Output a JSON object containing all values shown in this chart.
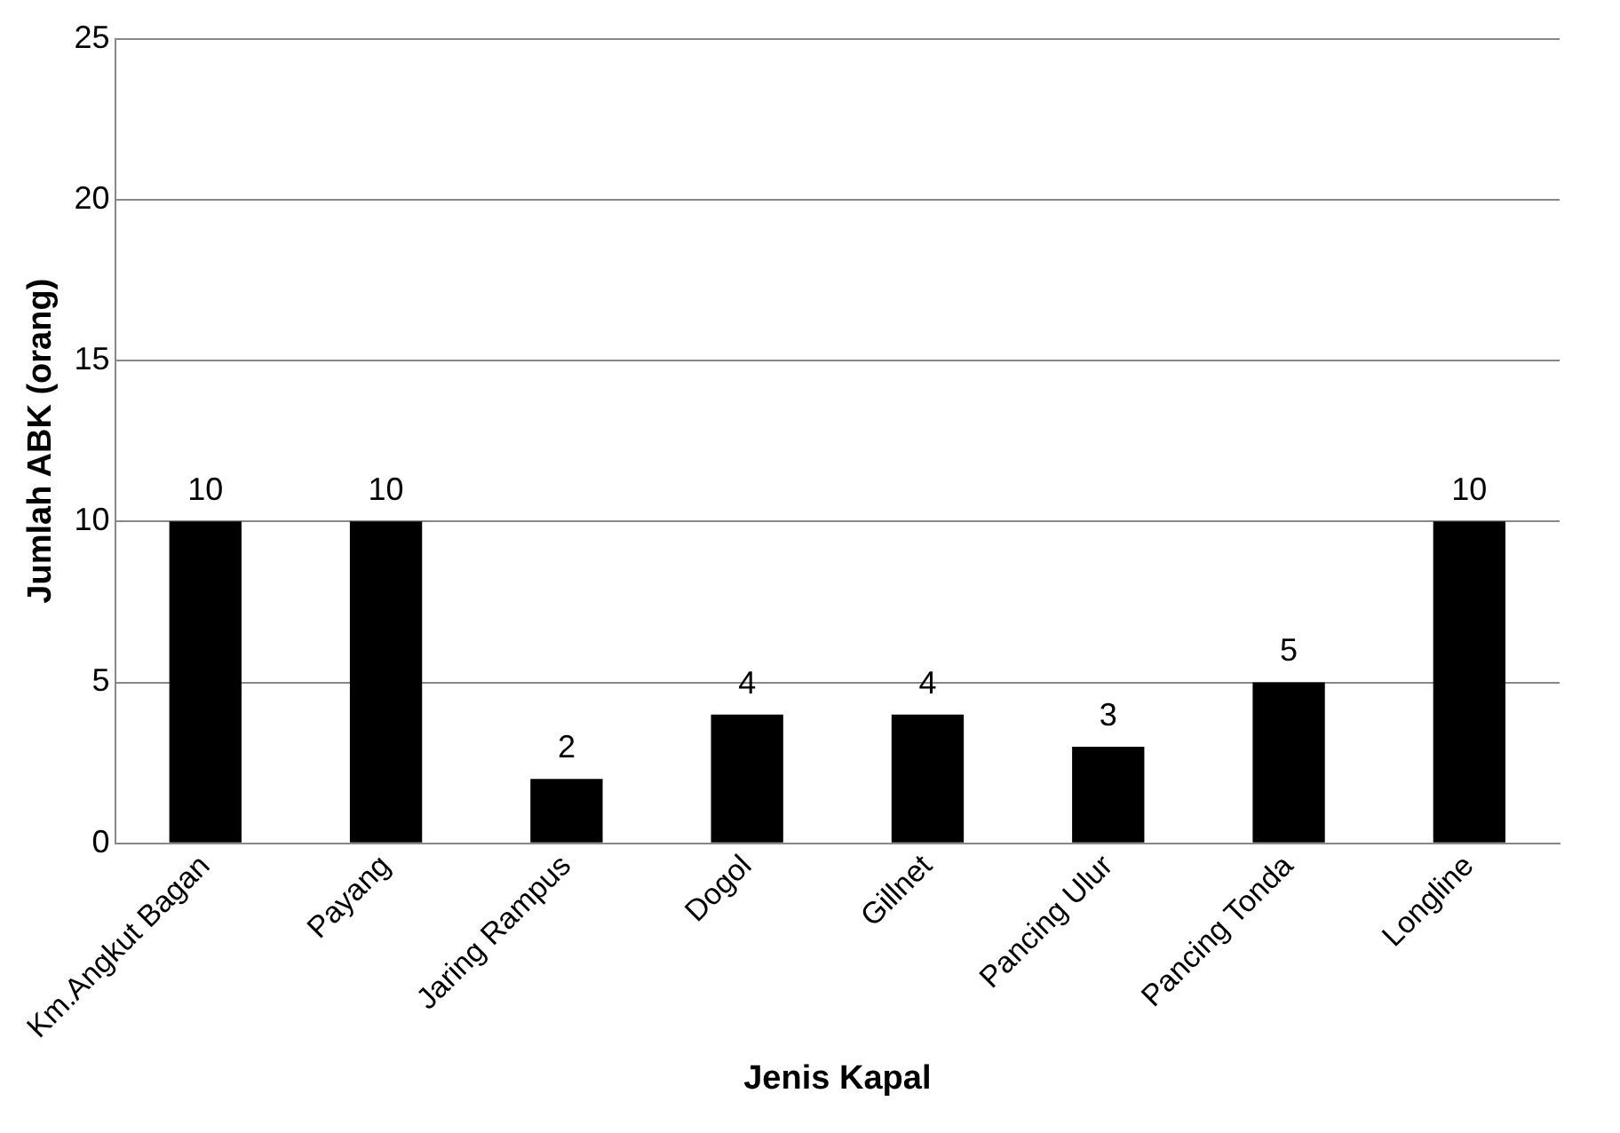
{
  "chart_data": {
    "type": "bar",
    "xlabel": "Jenis Kapal",
    "ylabel": "Jumlah ABK (orang)",
    "categories": [
      "Km.Angkut Bagan",
      "Payang",
      "Jaring Rampus",
      "Dogol",
      "Gillnet",
      "Pancing Ulur",
      "Pancing Tonda",
      "Longline"
    ],
    "values": [
      10,
      10,
      2,
      4,
      4,
      3,
      5,
      10
    ],
    "color": "#000000",
    "ylim": [
      0,
      25
    ],
    "yticks": [
      0,
      5,
      10,
      15,
      20,
      25
    ],
    "grid": "y",
    "data_labels": true,
    "legend": false
  }
}
